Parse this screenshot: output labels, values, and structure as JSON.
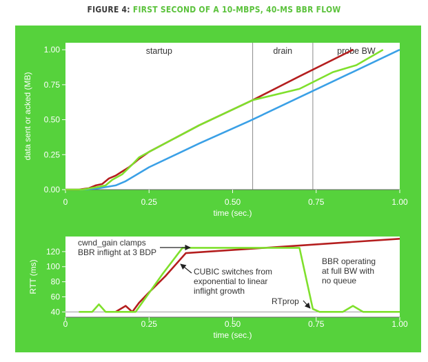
{
  "figure": {
    "label": "FIGURE 4:",
    "title": "FIRST SECOND OF A 10-MBPS, 40-MS BBR FLOW"
  },
  "colors": {
    "panel": "#56d23c",
    "bbr": "#b41e1e",
    "cubic_green": "#7fe02c",
    "acked_blue": "#3aa0e6",
    "text": "#333333",
    "tick_text": "#ffffff"
  },
  "chart_data": [
    {
      "type": "line",
      "xlabel": "time (sec.)",
      "ylabel": "data sent or acked (MB)",
      "xlim": [
        0,
        1.0
      ],
      "ylim": [
        0,
        1.05
      ],
      "x_ticks": [
        "0",
        "0.25",
        "0.50",
        "0.75",
        "1.00"
      ],
      "y_ticks": [
        "0.00",
        "0.25",
        "0.50",
        "0.75",
        "1.00"
      ],
      "phases": [
        {
          "label": "startup",
          "x_end": 0.56
        },
        {
          "label": "drain",
          "x_end": 0.74
        },
        {
          "label": "probe BW"
        }
      ],
      "series": [
        {
          "color": "#3aa0e6",
          "points": [
            [
              0,
              0
            ],
            [
              0.05,
              0
            ],
            [
              0.1,
              0.01
            ],
            [
              0.15,
              0.03
            ],
            [
              0.18,
              0.06
            ],
            [
              0.25,
              0.16
            ],
            [
              0.4,
              0.33
            ],
            [
              0.55,
              0.49
            ],
            [
              0.7,
              0.66
            ],
            [
              0.85,
              0.83
            ],
            [
              1.0,
              1.0
            ]
          ]
        },
        {
          "color": "#b41e1e",
          "points": [
            [
              0,
              0
            ],
            [
              0.04,
              0
            ],
            [
              0.07,
              0.01
            ],
            [
              0.09,
              0.03
            ],
            [
              0.11,
              0.04
            ],
            [
              0.13,
              0.08
            ],
            [
              0.15,
              0.1
            ],
            [
              0.17,
              0.13
            ],
            [
              0.19,
              0.16
            ],
            [
              0.22,
              0.22
            ],
            [
              0.25,
              0.27
            ],
            [
              0.4,
              0.46
            ],
            [
              0.56,
              0.64
            ],
            [
              0.7,
              0.81
            ],
            [
              0.86,
              1.0
            ]
          ]
        },
        {
          "color": "#7fe02c",
          "points": [
            [
              0,
              0
            ],
            [
              0.05,
              0
            ],
            [
              0.1,
              0.02
            ],
            [
              0.12,
              0.03
            ],
            [
              0.14,
              0.07
            ],
            [
              0.17,
              0.11
            ],
            [
              0.2,
              0.18
            ],
            [
              0.22,
              0.23
            ],
            [
              0.25,
              0.27
            ],
            [
              0.4,
              0.46
            ],
            [
              0.56,
              0.64
            ],
            [
              0.7,
              0.72
            ],
            [
              0.8,
              0.84
            ],
            [
              0.87,
              0.89
            ],
            [
              0.95,
              1.0
            ]
          ]
        }
      ]
    },
    {
      "type": "line",
      "xlabel": "time (sec.)",
      "ylabel": "RTT (ms)",
      "xlim": [
        0,
        1.0
      ],
      "ylim": [
        33,
        140
      ],
      "x_ticks": [
        "0",
        "0.25",
        "0.50",
        "0.75",
        "1.00"
      ],
      "y_ticks": [
        "40",
        "60",
        "80",
        "100",
        "120"
      ],
      "series": [
        {
          "color": "#b41e1e",
          "points": [
            [
              0.15,
              40
            ],
            [
              0.18,
              48
            ],
            [
              0.2,
              40
            ],
            [
              0.22,
              52
            ],
            [
              0.25,
              66
            ],
            [
              0.3,
              88
            ],
            [
              0.36,
              118
            ],
            [
              1.0,
              137
            ]
          ]
        },
        {
          "color": "#7fe02c",
          "points": [
            [
              0.04,
              40
            ],
            [
              0.08,
              40
            ],
            [
              0.1,
              50
            ],
            [
              0.12,
              40
            ],
            [
              0.15,
              40
            ],
            [
              0.21,
              40
            ],
            [
              0.29,
              90
            ],
            [
              0.35,
              125
            ],
            [
              0.7,
              125
            ],
            [
              0.74,
              44
            ],
            [
              0.76,
              40
            ],
            [
              0.83,
              40
            ],
            [
              0.86,
              48
            ],
            [
              0.89,
              40
            ],
            [
              1.0,
              40
            ]
          ]
        }
      ],
      "annotations": [
        {
          "text": "cwnd_gain clamps BBR inflight at 3 BDP",
          "lines": [
            "cwnd_gain clamps",
            "BBR inflight at 3 BDP"
          ]
        },
        {
          "text": "CUBIC switches from exponential to linear inflight growth",
          "lines": [
            "CUBIC switches from",
            "exponential to linear",
            "inflight growth"
          ]
        },
        {
          "text": "RTprop",
          "lines": [
            "RTprop"
          ]
        },
        {
          "text": "BBR operating at full BW with no queue",
          "lines": [
            "BBR operating",
            "at full BW with",
            "no queue"
          ]
        }
      ]
    }
  ]
}
